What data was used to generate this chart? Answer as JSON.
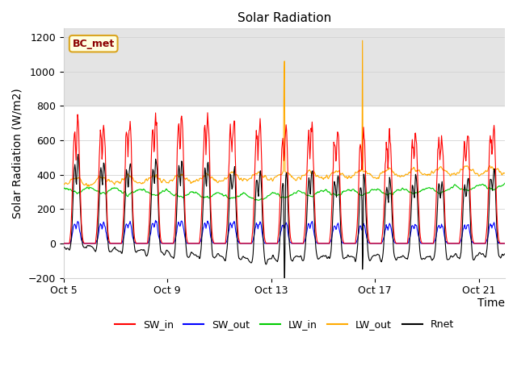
{
  "title": "Solar Radiation",
  "xlabel": "Time",
  "ylabel": "Solar Radiation (W/m2)",
  "ylim": [
    -200,
    1250
  ],
  "xlim_days": [
    0,
    17
  ],
  "yticks": [
    -200,
    0,
    200,
    400,
    600,
    800,
    1000,
    1200
  ],
  "xtick_labels": [
    "Oct 5",
    "Oct 9",
    "Oct 13",
    "Oct 17",
    "Oct 21"
  ],
  "xtick_positions": [
    0,
    4,
    8,
    12,
    16
  ],
  "annotation_label": "BC_met",
  "shaded_ymin": 800,
  "shaded_ymax": 1250,
  "colors": {
    "SW_in": "#ff0000",
    "SW_out": "#0000ff",
    "LW_in": "#00cc00",
    "LW_out": "#ffaa00",
    "Rnet": "#000000"
  },
  "title_fontsize": 11,
  "axis_label_fontsize": 10,
  "tick_fontsize": 9,
  "legend_fontsize": 9
}
